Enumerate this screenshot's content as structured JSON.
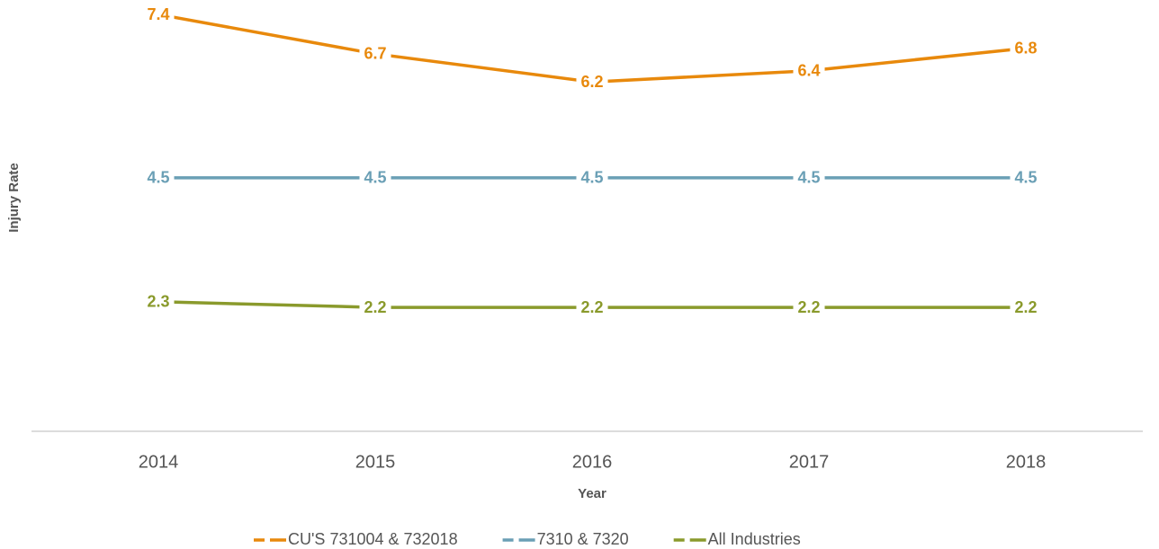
{
  "chart_data": {
    "type": "line",
    "x_label": "Year",
    "y_label": "Injury Rate",
    "categories": [
      "2014",
      "2015",
      "2016",
      "2017",
      "2018"
    ],
    "series": [
      {
        "name": "CU'S 731004 & 732018",
        "color": "#e8890c",
        "values": [
          7.4,
          6.7,
          6.2,
          6.4,
          6.8
        ]
      },
      {
        "name": "7310 & 7320",
        "color": "#6a9fb5",
        "values": [
          4.5,
          4.5,
          4.5,
          4.5,
          4.5
        ]
      },
      {
        "name": "All Industries",
        "color": "#8a9a2c",
        "values": [
          2.3,
          2.2,
          2.2,
          2.2,
          2.2
        ]
      }
    ],
    "ylim": [
      0,
      7.6
    ],
    "grid": false,
    "legend": "bottom"
  }
}
